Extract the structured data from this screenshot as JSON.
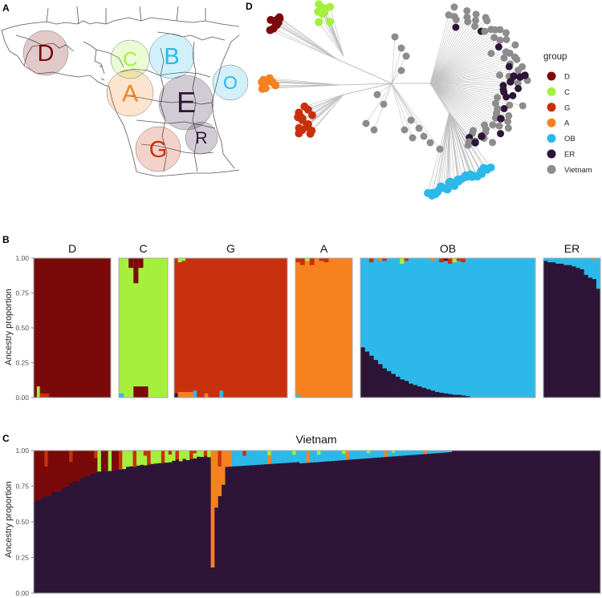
{
  "colors": {
    "D": "#7a0a0a",
    "C": "#a4f03c",
    "G": "#c8300d",
    "A": "#f5821f",
    "OB": "#2cb9ea",
    "ER": "#2e1538",
    "Vietnam": "#8c8c8c",
    "grid": "#e5e5e5",
    "map_line": "#555555"
  },
  "panels": {
    "A": "A",
    "B": "B",
    "C": "C",
    "D": "D"
  },
  "chart_data": [
    {
      "type": "map",
      "panel": "A",
      "regions": [
        {
          "label": "D",
          "color": "#7a0a0a"
        },
        {
          "label": "C",
          "color": "#a4f03c"
        },
        {
          "label": "B",
          "color": "#2cb9ea"
        },
        {
          "label": "O",
          "color": "#2cb9ea"
        },
        {
          "label": "A",
          "color": "#f5821f"
        },
        {
          "label": "E",
          "color": "#2e1538"
        },
        {
          "label": "R",
          "color": "#2e1538"
        },
        {
          "label": "G",
          "color": "#c8300d"
        }
      ]
    },
    {
      "type": "scatter",
      "panel": "D",
      "description_label": "unrooted tree",
      "legend": {
        "title": "group",
        "entries": [
          {
            "name": "D",
            "color": "#7a0a0a"
          },
          {
            "name": "C",
            "color": "#a4f03c"
          },
          {
            "name": "G",
            "color": "#c8300d"
          },
          {
            "name": "A",
            "color": "#f5821f"
          },
          {
            "name": "OB",
            "color": "#2cb9ea"
          },
          {
            "name": "ER",
            "color": "#2e1538"
          },
          {
            "name": "Vietnam",
            "color": "#8c8c8c"
          }
        ]
      }
    },
    {
      "type": "stacked-bar",
      "panel": "B",
      "ylabel": "Ancestry proportion",
      "ylim": [
        0,
        1
      ],
      "yticks": [
        "0.00",
        "0.25",
        "0.50",
        "0.75",
        "1.00"
      ],
      "facets": [
        {
          "label": "D",
          "n": 25,
          "base": "D",
          "bottom_other": [
            [
              "C",
              0.08,
              1,
              2
            ],
            [
              "G",
              0.03,
              2,
              5
            ]
          ]
        },
        {
          "label": "C",
          "n": 10,
          "base": "C",
          "top_other": [
            [
              "D",
              0.07,
              2,
              3
            ],
            [
              "D",
              0.18,
              3,
              4
            ],
            [
              "D",
              0.07,
              4,
              5
            ]
          ],
          "bottom_other": [
            [
              "OB",
              0.03,
              0,
              1
            ],
            [
              "D",
              0.08,
              3,
              6
            ]
          ]
        },
        {
          "label": "G",
          "n": 30,
          "base": "G",
          "top_other": [
            [
              "C",
              0.03,
              1,
              2
            ],
            [
              "C",
              0.02,
              2,
              3
            ]
          ],
          "bottom_other": [
            [
              "ER",
              0.03,
              0,
              1
            ],
            [
              "A",
              0.04,
              1,
              5
            ],
            [
              "OB",
              0.05,
              5,
              6
            ],
            [
              "A",
              0.03,
              8,
              9
            ],
            [
              "OB",
              0.05,
              12,
              13
            ]
          ]
        },
        {
          "label": "A",
          "n": 12,
          "base": "A",
          "top_other": [
            [
              "G",
              0.03,
              0,
              1
            ],
            [
              "G",
              0.05,
              1,
              2
            ],
            [
              "C",
              0.02,
              2,
              3
            ],
            [
              "G",
              0.05,
              3,
              4
            ],
            [
              "G",
              0.02,
              5,
              6
            ],
            [
              "G",
              0.03,
              6,
              7
            ]
          ],
          "bottom_other": [
            [
              "OB",
              0.02,
              0,
              1
            ]
          ]
        },
        {
          "label": "OB",
          "n": 40,
          "base": "OB",
          "er_curve": [
            0.36,
            0.33,
            0.3,
            0.27,
            0.24,
            0.21,
            0.19,
            0.17,
            0.15,
            0.13,
            0.12,
            0.1,
            0.09,
            0.08,
            0.07,
            0.06,
            0.05,
            0.04,
            0.035,
            0.03,
            0.025,
            0.02,
            0.02,
            0.015,
            0.01,
            0,
            0,
            0,
            0,
            0,
            0,
            0,
            0,
            0,
            0,
            0,
            0,
            0,
            0,
            0
          ],
          "top_other": [
            [
              "G",
              0.03,
              2,
              3
            ],
            [
              "A",
              0.02,
              4,
              5
            ],
            [
              "G",
              0.02,
              5,
              6
            ],
            [
              "C",
              0.04,
              9,
              10
            ],
            [
              "G",
              0.02,
              10,
              11
            ],
            [
              "A",
              0.02,
              16,
              17
            ],
            [
              "G",
              0.03,
              18,
              19
            ],
            [
              "D",
              0.02,
              19,
              20
            ],
            [
              "G",
              0.04,
              20,
              21
            ],
            [
              "C",
              0.03,
              21,
              22
            ],
            [
              "G",
              0.02,
              22,
              23
            ],
            [
              "G",
              0.03,
              23,
              24
            ]
          ]
        },
        {
          "label": "ER",
          "n": 14,
          "base": "ER",
          "ob_curve": [
            0.02,
            0.03,
            0.03,
            0.04,
            0.04,
            0.05,
            0.05,
            0.06,
            0.07,
            0.08,
            0.12,
            0.14,
            0.15,
            0.22
          ],
          "top_other": [
            [
              "A",
              0.01,
              12,
              13
            ]
          ]
        }
      ]
    },
    {
      "type": "stacked-bar",
      "panel": "C",
      "title": "Vietnam",
      "ylabel": "Ancestry proportion",
      "ylim": [
        0,
        1
      ],
      "yticks": [
        "0.00",
        "0.25",
        "0.50",
        "0.75",
        "1.00"
      ],
      "n": 160
    }
  ]
}
